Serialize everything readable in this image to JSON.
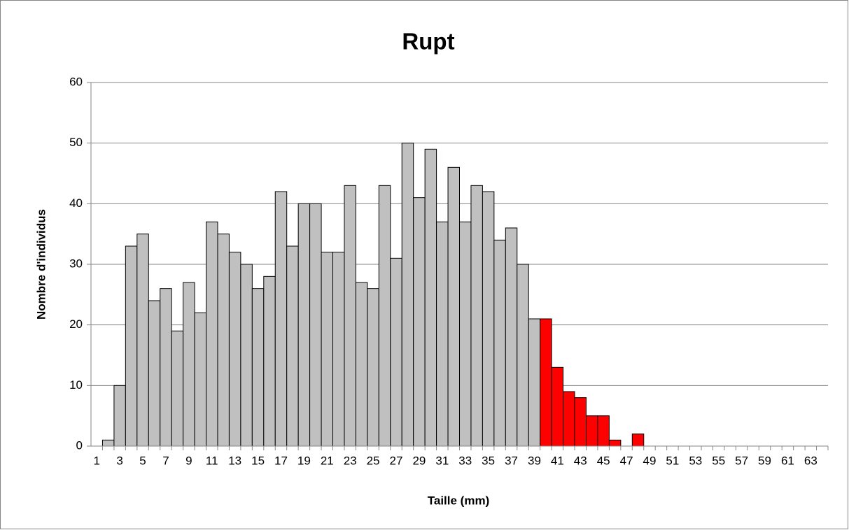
{
  "chart_data": {
    "type": "bar",
    "title": "Rupt",
    "x_label": "Taille (mm)",
    "y_label": "Nombre d'individus",
    "categories": [
      "1",
      null,
      "3",
      null,
      "5",
      null,
      "7",
      null,
      "9",
      null,
      "11",
      null,
      "13",
      null,
      "15",
      null,
      "17",
      null,
      "19",
      null,
      "21",
      null,
      "23",
      null,
      "25",
      null,
      "27",
      null,
      "29",
      null,
      "31",
      null,
      "33",
      null,
      "35",
      null,
      "37",
      null,
      "39",
      null,
      "41",
      null,
      "43",
      null,
      "45",
      null,
      "47",
      null,
      "49",
      null,
      "51",
      null,
      "53",
      null,
      "55",
      null,
      "57",
      null,
      "59",
      null,
      "61",
      null,
      "63",
      null
    ],
    "values": [
      0,
      1,
      10,
      33,
      35,
      24,
      26,
      19,
      27,
      22,
      37,
      35,
      32,
      30,
      26,
      28,
      42,
      33,
      40,
      40,
      32,
      32,
      43,
      27,
      26,
      43,
      31,
      50,
      41,
      49,
      37,
      46,
      37,
      43,
      42,
      34,
      36,
      30,
      21,
      21,
      13,
      9,
      8,
      5,
      5,
      1,
      0,
      2,
      0,
      0,
      0,
      0,
      0,
      0,
      0,
      0,
      0,
      0,
      0,
      0,
      0,
      0,
      0,
      0
    ],
    "colors": [
      "#c0c0c0",
      "#c0c0c0",
      "#c0c0c0",
      "#c0c0c0",
      "#c0c0c0",
      "#c0c0c0",
      "#c0c0c0",
      "#c0c0c0",
      "#c0c0c0",
      "#c0c0c0",
      "#c0c0c0",
      "#c0c0c0",
      "#c0c0c0",
      "#c0c0c0",
      "#c0c0c0",
      "#c0c0c0",
      "#c0c0c0",
      "#c0c0c0",
      "#c0c0c0",
      "#c0c0c0",
      "#c0c0c0",
      "#c0c0c0",
      "#c0c0c0",
      "#c0c0c0",
      "#c0c0c0",
      "#c0c0c0",
      "#c0c0c0",
      "#c0c0c0",
      "#c0c0c0",
      "#c0c0c0",
      "#c0c0c0",
      "#c0c0c0",
      "#c0c0c0",
      "#c0c0c0",
      "#c0c0c0",
      "#c0c0c0",
      "#c0c0c0",
      "#c0c0c0",
      "#c0c0c0",
      "#ff0000",
      "#ff0000",
      "#ff0000",
      "#ff0000",
      "#ff0000",
      "#ff0000",
      "#ff0000",
      "#ff0000",
      "#ff0000",
      "#ff0000",
      "#ff0000",
      "#ff0000",
      "#ff0000",
      "#ff0000",
      "#ff0000",
      "#ff0000",
      "#ff0000",
      "#ff0000",
      "#ff0000",
      "#ff0000",
      "#ff0000",
      "#ff0000",
      "#ff0000",
      "#ff0000",
      "#ff0000"
    ],
    "ylim": [
      0,
      60
    ],
    "yticks": [
      0,
      10,
      20,
      30,
      40,
      50,
      60
    ],
    "grid": true
  }
}
